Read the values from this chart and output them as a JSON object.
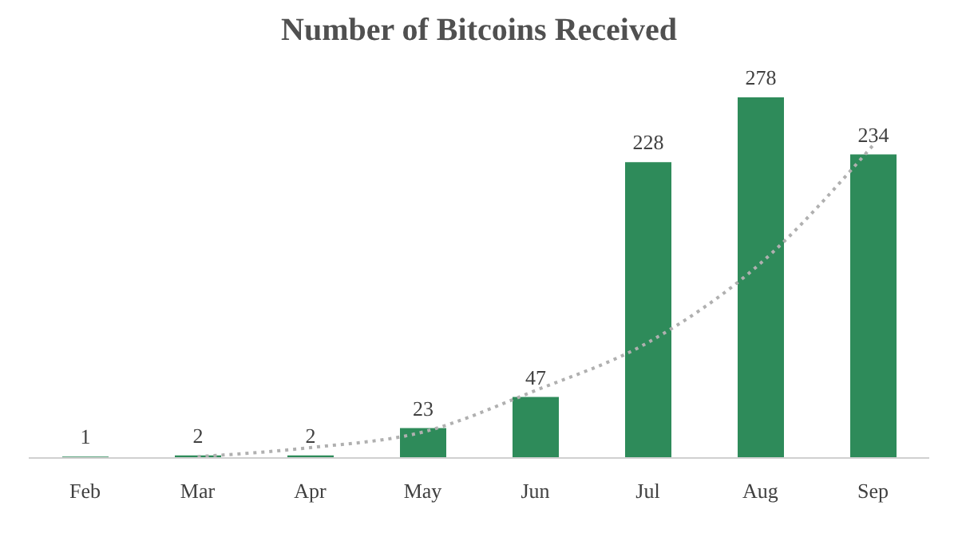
{
  "chart_data": {
    "type": "bar",
    "title": "Number of Bitcoins Received",
    "categories": [
      "Feb",
      "Mar",
      "Apr",
      "May",
      "Jun",
      "Jul",
      "Aug",
      "Sep"
    ],
    "series": [
      {
        "color": "#2e8b5a",
        "values": [
          1,
          2,
          2,
          23,
          47,
          228,
          278,
          234
        ],
        "value_labels": [
          "1",
          "2",
          "2",
          "23",
          "47",
          "228",
          "278",
          "234"
        ]
      },
      {
        "type": "line",
        "color": "#b0b0b0",
        "line_style": "dotted",
        "marker": "none",
        "values": [
          null,
          1,
          8,
          20,
          52,
          89,
          150,
          241
        ]
      }
    ],
    "grid": false,
    "legend": false
  }
}
